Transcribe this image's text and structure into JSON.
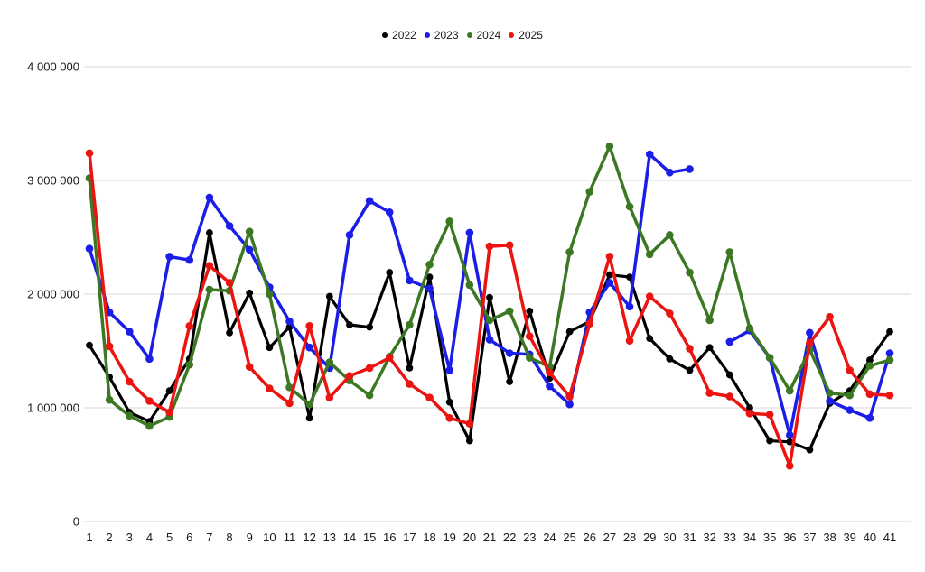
{
  "chart_data": {
    "type": "line",
    "title": "",
    "xlabel": "",
    "ylabel": "",
    "x": [
      1,
      2,
      3,
      4,
      5,
      6,
      7,
      8,
      9,
      10,
      11,
      12,
      13,
      14,
      15,
      16,
      17,
      18,
      19,
      20,
      21,
      22,
      23,
      24,
      25,
      26,
      27,
      28,
      29,
      30,
      31,
      32,
      33,
      34,
      35,
      36,
      37,
      38,
      39,
      40,
      41
    ],
    "ylim": [
      0,
      4000000
    ],
    "y_ticks": [
      0,
      1000000,
      2000000,
      3000000,
      4000000
    ],
    "y_tick_labels": [
      "0",
      "1 000 000",
      "2 000 000",
      "3 000 000",
      "4 000 000"
    ],
    "grid": true,
    "legend_position": "top-center",
    "colors": {
      "grid": "#d9d9d9",
      "text": "#1a1a1a",
      "background": "#ffffff"
    },
    "series": [
      {
        "name": "2022",
        "color": "#000000",
        "values": [
          1550000,
          1270000,
          960000,
          880000,
          1150000,
          1430000,
          2540000,
          1660000,
          2010000,
          1530000,
          1710000,
          910000,
          1980000,
          1730000,
          1710000,
          2190000,
          1350000,
          2150000,
          1050000,
          710000,
          1970000,
          1230000,
          1850000,
          1260000,
          1670000,
          1760000,
          2170000,
          2150000,
          1610000,
          1430000,
          1330000,
          1530000,
          1290000,
          1000000,
          710000,
          700000,
          630000,
          1040000,
          1150000,
          1420000,
          1670000
        ]
      },
      {
        "name": "2023",
        "color": "#1b1ee6",
        "values": [
          2400000,
          1840000,
          1670000,
          1430000,
          2330000,
          2300000,
          2850000,
          2600000,
          2390000,
          2060000,
          1760000,
          1530000,
          1350000,
          2520000,
          2820000,
          2720000,
          2120000,
          2050000,
          1330000,
          2540000,
          1600000,
          1480000,
          1470000,
          1190000,
          1030000,
          1840000,
          2100000,
          1890000,
          3230000,
          3070000,
          3100000,
          null,
          1580000,
          1680000,
          1440000,
          760000,
          1660000,
          1060000,
          980000,
          910000,
          1480000
        ]
      },
      {
        "name": "2024",
        "color": "#3c7823",
        "values": [
          3020000,
          1070000,
          930000,
          840000,
          920000,
          1380000,
          2040000,
          2030000,
          2550000,
          2000000,
          1180000,
          1030000,
          1400000,
          1240000,
          1110000,
          1450000,
          1730000,
          2260000,
          2640000,
          2080000,
          1770000,
          1850000,
          1440000,
          1360000,
          2370000,
          2900000,
          3300000,
          2770000,
          2350000,
          2520000,
          2190000,
          1770000,
          2370000,
          1700000,
          1440000,
          1150000,
          1510000,
          1130000,
          1110000,
          1370000,
          1420000
        ]
      },
      {
        "name": "2025",
        "color": "#eb1410",
        "values": [
          3240000,
          1540000,
          1230000,
          1060000,
          960000,
          1720000,
          2250000,
          2100000,
          1360000,
          1170000,
          1040000,
          1720000,
          1090000,
          1280000,
          1350000,
          1440000,
          1210000,
          1090000,
          910000,
          860000,
          2420000,
          2430000,
          1630000,
          1310000,
          1100000,
          1740000,
          2330000,
          1590000,
          1980000,
          1830000,
          1520000,
          1130000,
          1100000,
          950000,
          940000,
          490000,
          1570000,
          1800000,
          1330000,
          1120000,
          1110000
        ]
      }
    ]
  }
}
